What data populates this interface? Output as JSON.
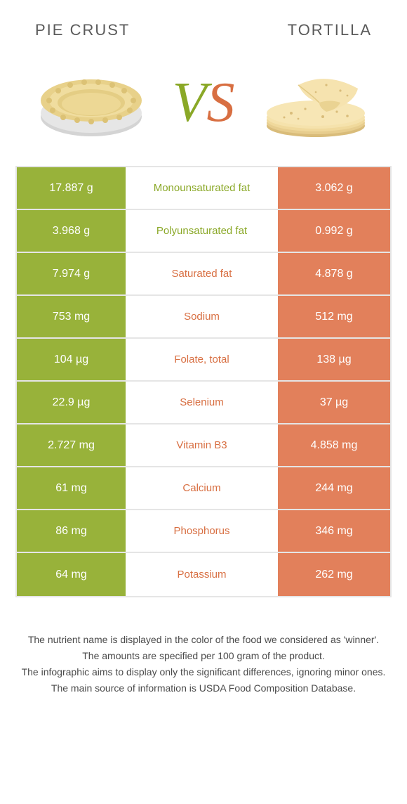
{
  "colors": {
    "left_bg": "#98b23a",
    "right_bg": "#e2805b",
    "left_text": "#8aa827",
    "right_text": "#d86f42",
    "border": "#e5e5e5",
    "header_text": "#5a5a5a",
    "footer_text": "#4a4a4a",
    "white": "#ffffff"
  },
  "header": {
    "left": "Pie crust",
    "right": "Tortilla"
  },
  "vs": {
    "v": "V",
    "s": "S"
  },
  "table": {
    "rows": [
      {
        "left": "17.887 g",
        "label": "Monounsaturated fat",
        "right": "3.062 g",
        "winner": "left"
      },
      {
        "left": "3.968 g",
        "label": "Polyunsaturated fat",
        "right": "0.992 g",
        "winner": "left"
      },
      {
        "left": "7.974 g",
        "label": "Saturated fat",
        "right": "4.878 g",
        "winner": "right"
      },
      {
        "left": "753 mg",
        "label": "Sodium",
        "right": "512 mg",
        "winner": "right"
      },
      {
        "left": "104 µg",
        "label": "Folate, total",
        "right": "138 µg",
        "winner": "right"
      },
      {
        "left": "22.9 µg",
        "label": "Selenium",
        "right": "37 µg",
        "winner": "right"
      },
      {
        "left": "2.727 mg",
        "label": "Vitamin B3",
        "right": "4.858 mg",
        "winner": "right"
      },
      {
        "left": "61 mg",
        "label": "Calcium",
        "right": "244 mg",
        "winner": "right"
      },
      {
        "left": "86 mg",
        "label": "Phosphorus",
        "right": "346 mg",
        "winner": "right"
      },
      {
        "left": "64 mg",
        "label": "Potassium",
        "right": "262 mg",
        "winner": "right"
      }
    ]
  },
  "footer": {
    "line1": "The nutrient name is displayed in the color of the food we considered as 'winner'.",
    "line2": "The amounts are specified per 100 gram of the product.",
    "line3": "The infographic aims to display only the significant differences, ignoring minor ones.",
    "line4": "The main source of information is USDA Food Composition Database."
  }
}
